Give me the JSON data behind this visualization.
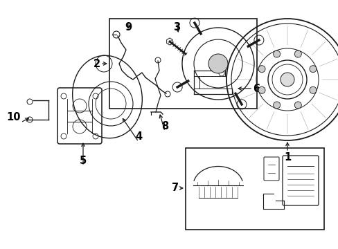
{
  "background_color": "#ffffff",
  "line_color": "#1a1a1a",
  "text_color": "#000000",
  "fig_width": 4.89,
  "fig_height": 3.6,
  "dpi": 100,
  "label_fontsize": 10.5
}
